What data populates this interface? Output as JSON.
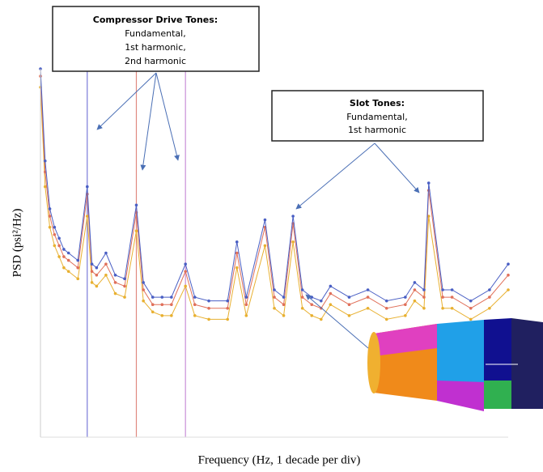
{
  "chart_data": {
    "type": "line",
    "y_label": "PSD (psi²/Hz)",
    "x_label": "Frequency (Hz, 1 decade per div)",
    "xlim": [
      0,
      100
    ],
    "ylim": [
      0,
      100
    ],
    "x": [
      0,
      1,
      2,
      3,
      4,
      5,
      6,
      8,
      10,
      11,
      12,
      14,
      16,
      18,
      20.5,
      22,
      24,
      26,
      28,
      31,
      33,
      36,
      40,
      42,
      44,
      48,
      50,
      52,
      54,
      56,
      58,
      60,
      62,
      66,
      70,
      74,
      78,
      80,
      82,
      83,
      86,
      88,
      92,
      96,
      100
    ],
    "series": [
      {
        "color": "#4a5fc4",
        "values": [
          100,
          75,
          62,
          57,
          54,
          51,
          50,
          48,
          68,
          47,
          46,
          50,
          44,
          43,
          63,
          42,
          38,
          38,
          38,
          47,
          38,
          37,
          37,
          53,
          38,
          59,
          40,
          38,
          60,
          40,
          38,
          37,
          41,
          38,
          40,
          37,
          38,
          42,
          40,
          69,
          40,
          40,
          37,
          40,
          47
        ]
      },
      {
        "color": "#e0705a",
        "values": [
          98,
          72,
          60,
          55,
          52,
          49,
          48,
          46,
          66,
          45,
          44,
          47,
          42,
          41,
          61,
          40,
          36,
          36,
          36,
          45,
          36,
          35,
          35,
          50,
          36,
          57,
          38,
          36,
          58,
          38,
          36,
          35,
          39,
          36,
          38,
          35,
          36,
          40,
          38,
          67,
          38,
          38,
          35,
          38,
          44
        ]
      },
      {
        "color": "#e8b030",
        "values": [
          95,
          68,
          57,
          52,
          49,
          46,
          45,
          43,
          60,
          42,
          41,
          44,
          39,
          38,
          56,
          37,
          34,
          33,
          33,
          41,
          33,
          32,
          32,
          46,
          33,
          52,
          35,
          33,
          53,
          35,
          33,
          32,
          36,
          33,
          35,
          32,
          33,
          37,
          35,
          60,
          35,
          35,
          32,
          35,
          40
        ]
      }
    ],
    "tone_lines": [
      {
        "x": 10,
        "color": "#7b7bd8"
      },
      {
        "x": 20.5,
        "color": "#e08a80"
      },
      {
        "x": 31,
        "color": "#c890d8"
      }
    ],
    "annotations": {
      "compressor": {
        "title": "Compressor Drive Tones:",
        "lines": [
          "Fundamental,",
          "1st harmonic,",
          "2nd harmonic"
        ]
      },
      "slot": {
        "title": "Slot Tones:",
        "lines": [
          "Fundamental,",
          "1st harmonic"
        ]
      }
    }
  }
}
